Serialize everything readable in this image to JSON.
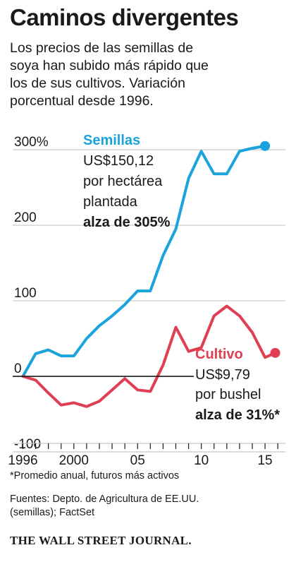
{
  "title": "Caminos divergentes",
  "subtitle_lines": [
    "Los precios de las semillas de",
    "soya han subido más rápido que",
    "los de sus cultivos. Variación",
    "porcentual desde 1996."
  ],
  "footnote": "*Promedio anual, futuros más activos",
  "source_lines": [
    "Fuentes: Depto. de Agricultura de EE.UU.",
    "(semillas); FactSet"
  ],
  "brand": "THE WALL STREET JOURNAL.",
  "colors": {
    "seeds": "#1aa3dc",
    "crop": "#e03e52",
    "grid": "#c8c8c8",
    "text": "#1a1a1a"
  },
  "chart_data": {
    "type": "line",
    "ylim": [
      -100,
      330
    ],
    "xlim": [
      1995.2,
      2016.6
    ],
    "yticks": [
      {
        "value": 300,
        "label": "300%"
      },
      {
        "value": 200,
        "label": "200"
      },
      {
        "value": 100,
        "label": "100"
      },
      {
        "value": 0,
        "label": "0"
      },
      {
        "value": -100,
        "label": "-100"
      }
    ],
    "xticks": [
      {
        "value": 1996,
        "label": "1996"
      },
      {
        "value": 2000,
        "label": "2000"
      },
      {
        "value": 2005,
        "label": "05"
      },
      {
        "value": 2010,
        "label": "10"
      },
      {
        "value": 2015,
        "label": "15"
      }
    ],
    "series": [
      {
        "name": "Semillas",
        "annotation_lines": [
          "US$150,12",
          "por hectárea",
          "plantada"
        ],
        "annotation_bold": "alza de 305%",
        "x": [
          1996,
          1997,
          1998,
          1999,
          2000,
          2001,
          2002,
          2003,
          2004,
          2005,
          2006,
          2007,
          2008,
          2009,
          2010,
          2011,
          2012,
          2013,
          2014,
          2015
        ],
        "y": [
          0,
          30,
          35,
          27,
          27,
          50,
          67,
          80,
          95,
          113,
          113,
          160,
          195,
          262,
          298,
          268,
          268,
          298,
          302,
          305
        ]
      },
      {
        "name": "Cultivo",
        "annotation_lines": [
          "US$9,79",
          "por bushel"
        ],
        "annotation_bold": "alza de 31%*",
        "x": [
          1996,
          1997,
          1998,
          1999,
          2000,
          2001,
          2002,
          2003,
          2004,
          2005,
          2006,
          2007,
          2008,
          2009,
          2010,
          2011,
          2012,
          2013,
          2014,
          2015,
          2015.8
        ],
        "y": [
          0,
          -5,
          -22,
          -38,
          -35,
          -40,
          -33,
          -18,
          -3,
          -18,
          -20,
          15,
          65,
          33,
          38,
          80,
          93,
          80,
          58,
          25,
          31
        ]
      }
    ]
  }
}
